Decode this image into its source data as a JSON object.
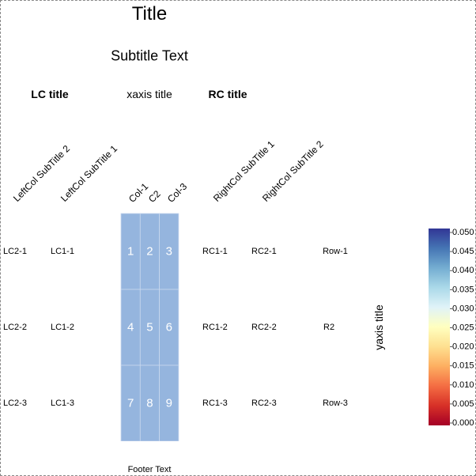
{
  "chart_data": {
    "type": "heatmap",
    "title": "Title",
    "subtitle": "Subtitle Text",
    "xlabel": "xaxis title",
    "ylabel": "yaxis title",
    "footer": "Footer Text",
    "left_col_title": "LC title",
    "right_col_title": "RC title",
    "columns": [
      "Col-1",
      "C2",
      "Col-3"
    ],
    "rows": [
      "Row-1",
      "R2",
      "Row-3"
    ],
    "values": [
      [
        1,
        2,
        3
      ],
      [
        4,
        5,
        6
      ],
      [
        7,
        8,
        9
      ]
    ],
    "cell_color": "#95b5de",
    "left_subtitles": [
      "LeftCol SubTitle 2",
      "LeftCol SubTitle 1"
    ],
    "left_labels": [
      [
        "LC2-1",
        "LC1-1"
      ],
      [
        "LC2-2",
        "LC1-2"
      ],
      [
        "LC2-3",
        "LC1-3"
      ]
    ],
    "right_subtitles": [
      "RightCol SubTitle 1",
      "RightCol SubTitle 2"
    ],
    "right_labels": [
      [
        "RC1-1",
        "RC2-1"
      ],
      [
        "RC1-2",
        "RC2-2"
      ],
      [
        "RC1-3",
        "RC2-3"
      ]
    ],
    "colorbar": {
      "ticks": [
        "0.050",
        "0.045",
        "0.040",
        "0.035",
        "0.030",
        "0.025",
        "0.020",
        "0.015",
        "0.010",
        "0.005",
        "0.000"
      ],
      "range": [
        0.0,
        0.05
      ],
      "colors": [
        "#a50026",
        "#d73027",
        "#f46d43",
        "#fdae61",
        "#fee090",
        "#ffffbf",
        "#e0f3f8",
        "#abd9e9",
        "#74add1",
        "#4575b4",
        "#313695"
      ]
    }
  }
}
